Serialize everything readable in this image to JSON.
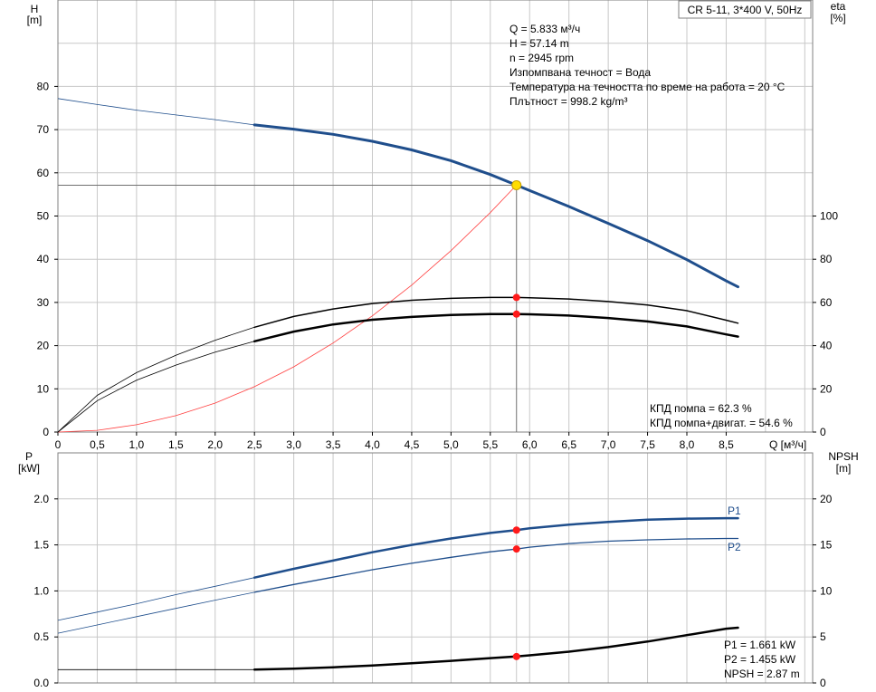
{
  "chart_data": [
    {
      "type": "line",
      "title": "CR 5-11, 3*400 V, 50Hz",
      "xlabel": "Q [м³/ч]",
      "x_ticks": [
        "0",
        "0,5",
        "1,0",
        "1,5",
        "2,0",
        "2,5",
        "3,0",
        "3,5",
        "4,0",
        "4,5",
        "5,0",
        "5,5",
        "6,0",
        "6,5",
        "7,0",
        "7,5",
        "8,0",
        "8,5"
      ],
      "xlim": [
        0,
        9.6
      ],
      "left_axis": {
        "label_top": "H",
        "label_unit": "[m]",
        "range": [
          0,
          100
        ],
        "ticks": [
          0,
          10,
          20,
          30,
          40,
          50,
          60,
          70,
          80
        ]
      },
      "right_axis": {
        "label_top": "eta",
        "label_unit": "[%]",
        "range": [
          0,
          200
        ],
        "ticks": [
          0,
          20,
          40,
          60,
          80,
          100
        ]
      },
      "info": [
        "Q = 5.833 м³/ч",
        "H = 57.14 m",
        "n = 2945 rpm",
        "Изпомпвана течност = Вода",
        "Температура на течността по време на работа = 20 °C",
        "Плътност = 998.2 kg/m³"
      ],
      "efficiency_notes": [
        "КПД помпа = 62.3 %",
        "КПД помпа+двигат. = 54.6 %"
      ],
      "duty_point": {
        "Q": 5.833,
        "H": 57.14,
        "eta_pump": 62.3,
        "eta_total": 54.6
      },
      "series": [
        {
          "key": "H",
          "axis": "left",
          "color": "#1f4e8c",
          "width": 3,
          "thin_until": 2.5,
          "points": [
            [
              0,
              77.2
            ],
            [
              0.5,
              75.8
            ],
            [
              1.0,
              74.5
            ],
            [
              1.5,
              73.4
            ],
            [
              2.0,
              72.3
            ],
            [
              2.5,
              71.1
            ],
            [
              3.0,
              70.1
            ],
            [
              3.5,
              68.9
            ],
            [
              4.0,
              67.3
            ],
            [
              4.5,
              65.3
            ],
            [
              5.0,
              62.8
            ],
            [
              5.5,
              59.6
            ],
            [
              5.833,
              57.14
            ],
            [
              6.0,
              55.9
            ],
            [
              6.5,
              52.2
            ],
            [
              7.0,
              48.3
            ],
            [
              7.5,
              44.3
            ],
            [
              8.0,
              39.9
            ],
            [
              8.5,
              35.0
            ],
            [
              8.65,
              33.6
            ]
          ]
        },
        {
          "key": "system",
          "axis": "left",
          "color": "#ff4040",
          "width": 0.8,
          "points": [
            [
              0,
              0
            ],
            [
              0.5,
              0.4
            ],
            [
              1.0,
              1.7
            ],
            [
              1.5,
              3.8
            ],
            [
              2.0,
              6.7
            ],
            [
              2.5,
              10.5
            ],
            [
              3.0,
              15.1
            ],
            [
              3.5,
              20.6
            ],
            [
              4.0,
              26.9
            ],
            [
              4.5,
              34.0
            ],
            [
              5.0,
              42.0
            ],
            [
              5.5,
              50.8
            ],
            [
              5.833,
              57.14
            ]
          ]
        },
        {
          "key": "eta_pump",
          "axis": "right",
          "color": "#000000",
          "width": 1.5,
          "thin_until": 2.5,
          "points": [
            [
              0,
              0
            ],
            [
              0.5,
              17
            ],
            [
              1.0,
              27.5
            ],
            [
              1.5,
              35.5
            ],
            [
              2.0,
              42.5
            ],
            [
              2.5,
              48.5
            ],
            [
              3.0,
              53.5
            ],
            [
              3.5,
              57.0
            ],
            [
              4.0,
              59.5
            ],
            [
              4.5,
              61.0
            ],
            [
              5.0,
              61.9
            ],
            [
              5.5,
              62.3
            ],
            [
              5.833,
              62.3
            ],
            [
              6.0,
              62.2
            ],
            [
              6.5,
              61.6
            ],
            [
              7.0,
              60.4
            ],
            [
              7.5,
              58.8
            ],
            [
              8.0,
              56.2
            ],
            [
              8.5,
              51.8
            ],
            [
              8.65,
              50.4
            ]
          ]
        },
        {
          "key": "eta_total",
          "axis": "right",
          "color": "#000000",
          "width": 2.5,
          "thin_until": 2.5,
          "points": [
            [
              0,
              0
            ],
            [
              0.5,
              14.5
            ],
            [
              1.0,
              24
            ],
            [
              1.5,
              31
            ],
            [
              2.0,
              37
            ],
            [
              2.5,
              42
            ],
            [
              3.0,
              46.5
            ],
            [
              3.5,
              49.8
            ],
            [
              4.0,
              52
            ],
            [
              4.5,
              53.3
            ],
            [
              5.0,
              54.2
            ],
            [
              5.5,
              54.6
            ],
            [
              5.833,
              54.6
            ],
            [
              6.0,
              54.5
            ],
            [
              6.5,
              53.9
            ],
            [
              7.0,
              52.8
            ],
            [
              7.5,
              51.2
            ],
            [
              8.0,
              48.9
            ],
            [
              8.5,
              45.2
            ],
            [
              8.65,
              44.2
            ]
          ]
        }
      ]
    },
    {
      "type": "line",
      "xlim": [
        0,
        9.6
      ],
      "x_ticks_shared": true,
      "left_axis": {
        "label_top": "P",
        "label_unit": "[kW]",
        "range": [
          0,
          2.5
        ],
        "ticks": [
          "0.0",
          "0.5",
          "1.0",
          "1.5",
          "2.0"
        ]
      },
      "right_axis": {
        "label_top": "NPSH",
        "label_unit": "[m]",
        "range": [
          0,
          25
        ],
        "ticks": [
          0,
          5,
          10,
          15,
          20
        ]
      },
      "readings": [
        "P1 = 1.661 kW",
        "P2 = 1.455 kW",
        "NPSH = 2.87 m"
      ],
      "duty_point": {
        "Q": 5.833,
        "P1": 1.661,
        "P2": 1.455,
        "NPSH": 2.87
      },
      "series": [
        {
          "key": "P1",
          "name": "P1",
          "axis": "left",
          "color": "#1f4e8c",
          "width": 2.5,
          "thin_until": 2.5,
          "points": [
            [
              0,
              0.68
            ],
            [
              0.5,
              0.77
            ],
            [
              1.0,
              0.86
            ],
            [
              1.5,
              0.96
            ],
            [
              2.0,
              1.05
            ],
            [
              2.5,
              1.145
            ],
            [
              3.0,
              1.24
            ],
            [
              3.5,
              1.33
            ],
            [
              4.0,
              1.42
            ],
            [
              4.5,
              1.5
            ],
            [
              5.0,
              1.57
            ],
            [
              5.5,
              1.63
            ],
            [
              5.833,
              1.661
            ],
            [
              6.0,
              1.68
            ],
            [
              6.5,
              1.72
            ],
            [
              7.0,
              1.75
            ],
            [
              7.5,
              1.775
            ],
            [
              8.0,
              1.785
            ],
            [
              8.5,
              1.79
            ],
            [
              8.65,
              1.79
            ]
          ]
        },
        {
          "key": "P2",
          "name": "P2",
          "axis": "left",
          "color": "#1f4e8c",
          "width": 1.3,
          "thin_until": 2.5,
          "points": [
            [
              0,
              0.54
            ],
            [
              0.5,
              0.63
            ],
            [
              1.0,
              0.72
            ],
            [
              1.5,
              0.81
            ],
            [
              2.0,
              0.9
            ],
            [
              2.5,
              0.985
            ],
            [
              3.0,
              1.07
            ],
            [
              3.5,
              1.15
            ],
            [
              4.0,
              1.23
            ],
            [
              4.5,
              1.3
            ],
            [
              5.0,
              1.365
            ],
            [
              5.5,
              1.425
            ],
            [
              5.833,
              1.455
            ],
            [
              6.0,
              1.475
            ],
            [
              6.5,
              1.515
            ],
            [
              7.0,
              1.54
            ],
            [
              7.5,
              1.555
            ],
            [
              8.0,
              1.565
            ],
            [
              8.5,
              1.57
            ],
            [
              8.65,
              1.57
            ]
          ]
        },
        {
          "key": "NPSH",
          "axis": "right",
          "color": "#000000",
          "width": 2.5,
          "thin_until": 2.5,
          "points": [
            [
              0,
              1.45
            ],
            [
              0.5,
              1.45
            ],
            [
              1.0,
              1.45
            ],
            [
              1.5,
              1.45
            ],
            [
              2.0,
              1.45
            ],
            [
              2.5,
              1.45
            ],
            [
              3.0,
              1.55
            ],
            [
              3.5,
              1.7
            ],
            [
              4.0,
              1.9
            ],
            [
              4.5,
              2.15
            ],
            [
              5.0,
              2.4
            ],
            [
              5.5,
              2.7
            ],
            [
              5.833,
              2.87
            ],
            [
              6.0,
              3.0
            ],
            [
              6.5,
              3.4
            ],
            [
              7.0,
              3.9
            ],
            [
              7.5,
              4.5
            ],
            [
              8.0,
              5.2
            ],
            [
              8.5,
              5.9
            ],
            [
              8.65,
              6.0
            ]
          ]
        }
      ]
    }
  ]
}
